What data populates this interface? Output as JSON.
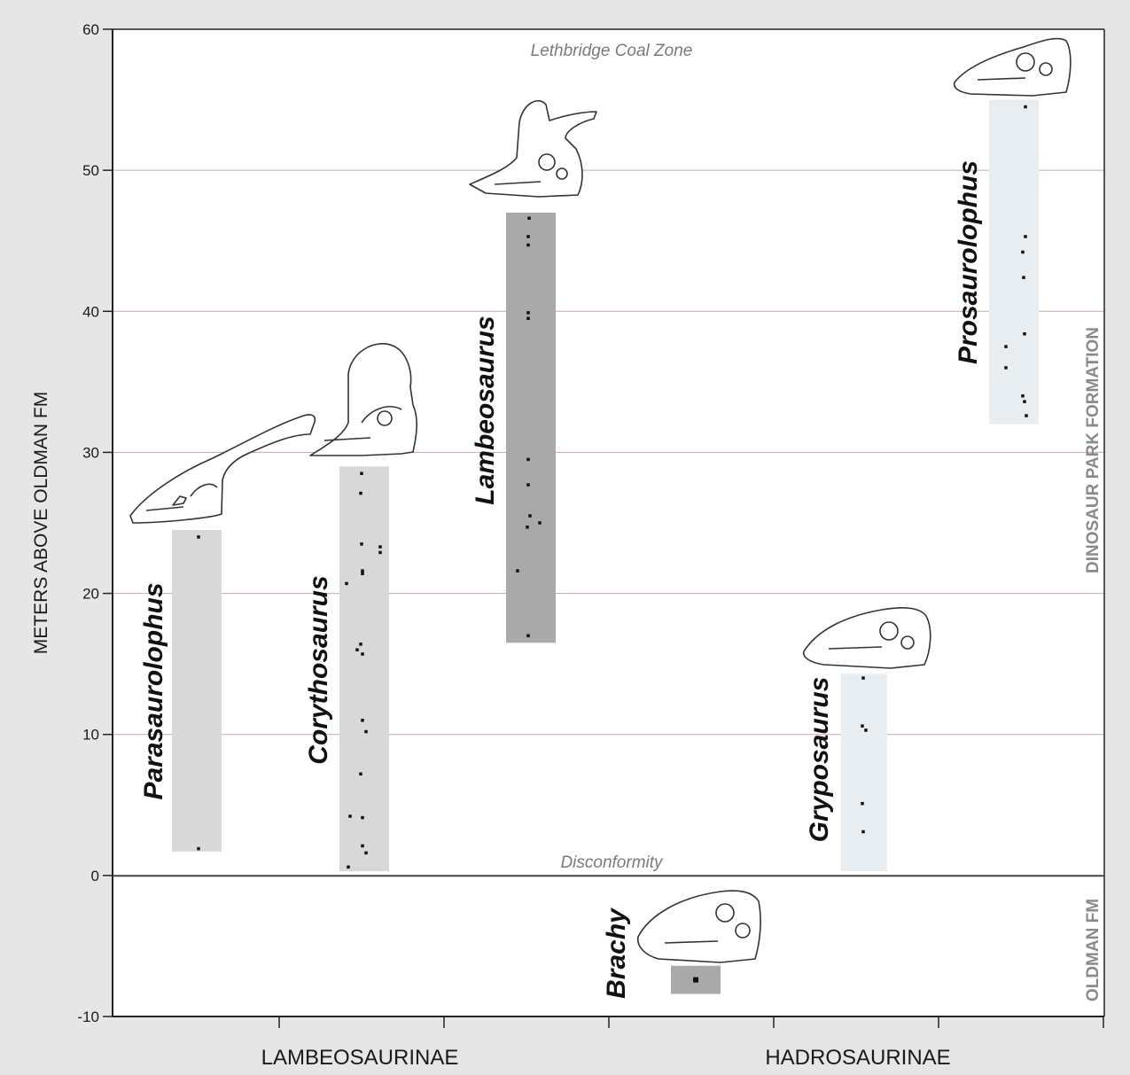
{
  "chart_data": {
    "type": "range",
    "ylabel": "METERS ABOVE OLDMAN FM",
    "ylim": [
      -10,
      60
    ],
    "yticks": [
      "-10",
      "0",
      "10",
      "20",
      "30",
      "40",
      "50",
      "60"
    ],
    "gridlines": [
      10,
      20,
      30,
      40,
      50
    ],
    "groups": [
      "LAMBEOSAURINAE",
      "HADROSAURINAE"
    ],
    "annotations": {
      "top_zone": "Lethbridge Coal Zone",
      "boundary": "Disconformity",
      "upper_formation": "DINOSAUR PARK FORMATION",
      "lower_formation": "OLDMAN FM"
    },
    "taxa": [
      {
        "name": "Parasaurolophus",
        "group": "LAMBEOSAURINAE",
        "range": [
          1.7,
          24.5
        ],
        "color": "#d8d8d8",
        "points": [
          24,
          1.9
        ]
      },
      {
        "name": "Corythosaurus",
        "group": "LAMBEOSAURINAE",
        "range": [
          0.3,
          29
        ],
        "color": "#d8d8d8",
        "points": [
          28.5,
          27.1,
          23.5,
          23.3,
          22.9,
          21.6,
          21.4,
          20.7,
          16.4,
          16.0,
          15.7,
          11.0,
          10.2,
          7.2,
          4.2,
          4.1,
          2.1,
          1.6,
          0.6
        ]
      },
      {
        "name": "Lambeosaurus",
        "group": "LAMBEOSAURINAE",
        "range": [
          16.5,
          47
        ],
        "color": "#a9a9a9",
        "points": [
          46.6,
          45.3,
          44.7,
          39.9,
          39.5,
          29.5,
          27.7,
          25.5,
          25.0,
          24.7,
          21.6,
          17.0
        ]
      },
      {
        "name": "Brachy",
        "group": "HADROSAURINAE",
        "range": [
          -8.4,
          -6.4
        ],
        "color": "#a9a9a9",
        "points": [
          -7.4
        ]
      },
      {
        "name": "Gryposaurus",
        "group": "HADROSAURINAE",
        "range": [
          0.3,
          14.3
        ],
        "color": "#e8edf2",
        "points": [
          14.0,
          10.6,
          10.3,
          5.1,
          3.1
        ]
      },
      {
        "name": "Prosaurolophus",
        "group": "HADROSAURINAE",
        "range": [
          32,
          55
        ],
        "color": "#e8edf2",
        "points": [
          54.5,
          45.3,
          44.2,
          42.4,
          38.4,
          37.5,
          36.0,
          34.0,
          33.6,
          32.6
        ]
      }
    ]
  }
}
